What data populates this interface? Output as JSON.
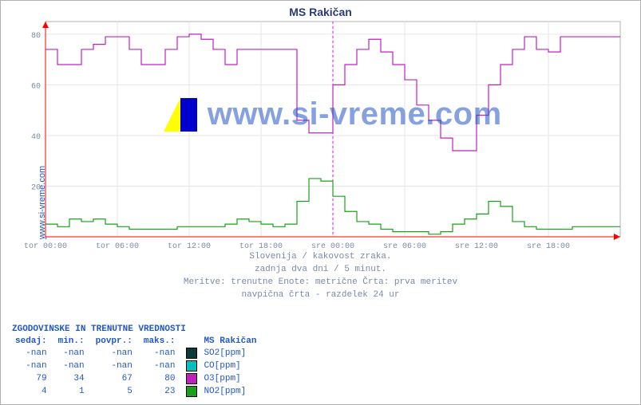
{
  "title": "MS Rakičan",
  "ylabel_link": "www.si-vreme.com",
  "watermark": "www.si-vreme.com",
  "caption_lines": [
    "Slovenija / kakovost zraka.",
    "zadnja dva dni / 5 minut.",
    "Meritve: trenutne  Enote: metrične  Črta: prva meritev",
    "navpična črta - razdelek 24 ur"
  ],
  "chart": {
    "type": "line-step",
    "background_color": "#ffffff",
    "grid_color": "#e6e6e6",
    "border_color": "#b0b0b0",
    "axis_arrow_color": "#ff0000",
    "vline_color": "#ff00ff",
    "vline_x_idx": 4,
    "label_fontsize": 10,
    "label_color": "#7a8aa5",
    "xlim": [
      0,
      8
    ],
    "ylim": [
      0,
      85
    ],
    "ytick_step": 20,
    "x_ticks": [
      "tor 00:00",
      "tor 06:00",
      "tor 12:00",
      "tor 18:00",
      "sre 00:00",
      "sre 06:00",
      "sre 12:00",
      "sre 18:00"
    ],
    "series": [
      {
        "name": "O3[ppm]",
        "color": "#c020c0",
        "line_width": 1.2,
        "step": true,
        "y": [
          74,
          68,
          68,
          74,
          76,
          79,
          79,
          74,
          68,
          68,
          74,
          79,
          80,
          78,
          74,
          68,
          74,
          74,
          74,
          74,
          74,
          46,
          41,
          41,
          60,
          68,
          74,
          78,
          73,
          68,
          62,
          52,
          46,
          39,
          34,
          34,
          48,
          60,
          68,
          74,
          79,
          74,
          73,
          79,
          79,
          79,
          79,
          79
        ]
      },
      {
        "name": "NO2[ppm]",
        "color": "#1aa01a",
        "line_width": 1.2,
        "step": true,
        "y": [
          5,
          4,
          7,
          6,
          7,
          5,
          4,
          3,
          3,
          3,
          3,
          4,
          4,
          4,
          4,
          5,
          7,
          6,
          5,
          4,
          5,
          14,
          23,
          22,
          16,
          10,
          6,
          5,
          3,
          2,
          2,
          2,
          1,
          2,
          5,
          7,
          9,
          14,
          12,
          6,
          4,
          3,
          3,
          3,
          4,
          4,
          4,
          4
        ]
      }
    ]
  },
  "stats": {
    "title": "ZGODOVINSKE IN TRENUTNE VREDNOSTI",
    "columns": [
      "sedaj:",
      "min.:",
      "povpr.:",
      "maks.:"
    ],
    "series_header": "MS Rakičan",
    "rows": [
      {
        "swatch": "#0a3a3a",
        "label": "SO2[ppm]",
        "vals": [
          "-nan",
          "-nan",
          "-nan",
          "-nan"
        ]
      },
      {
        "swatch": "#00c0c0",
        "label": "CO[ppm]",
        "vals": [
          "-nan",
          "-nan",
          "-nan",
          "-nan"
        ]
      },
      {
        "swatch": "#c020c0",
        "label": "O3[ppm]",
        "vals": [
          "79",
          "34",
          "67",
          "80"
        ]
      },
      {
        "swatch": "#1aa01a",
        "label": "NO2[ppm]",
        "vals": [
          "4",
          "1",
          "5",
          "23"
        ]
      }
    ]
  }
}
